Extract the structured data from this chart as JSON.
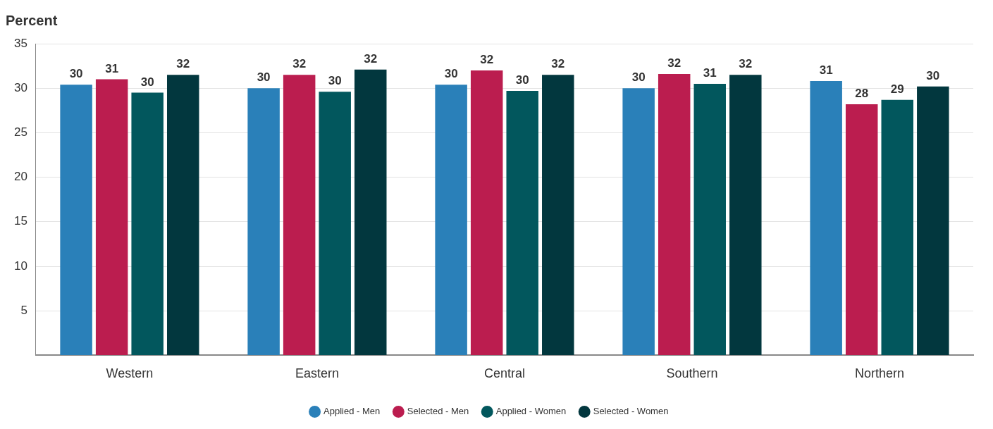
{
  "chart_data": {
    "type": "bar",
    "ylabel": "Percent",
    "categories": [
      "Western",
      "Eastern",
      "Central",
      "Southern",
      "Northern"
    ],
    "series": [
      {
        "name": "Applied - Men",
        "color": "#2a80b9",
        "values": [
          30.4,
          30.0,
          30.4,
          30.0,
          30.8
        ],
        "value_labels": [
          "30",
          "30",
          "30",
          "30",
          "31"
        ]
      },
      {
        "name": "Selected - Men",
        "color": "#bb1d4f",
        "values": [
          31.0,
          31.5,
          32.0,
          31.6,
          28.2
        ],
        "value_labels": [
          "31",
          "32",
          "32",
          "32",
          "28"
        ]
      },
      {
        "name": "Applied - Women",
        "color": "#02575d",
        "values": [
          29.5,
          29.6,
          29.7,
          30.5,
          28.7
        ],
        "value_labels": [
          "30",
          "30",
          "30",
          "31",
          "29"
        ]
      },
      {
        "name": "Selected - Women",
        "color": "#02373e",
        "values": [
          31.5,
          32.1,
          31.5,
          31.5,
          30.2
        ],
        "value_labels": [
          "32",
          "32",
          "32",
          "32",
          "30"
        ]
      }
    ],
    "ylim": [
      0,
      35
    ],
    "yticks": [
      {
        "value": 0,
        "label": null
      },
      5,
      10,
      15,
      20,
      25,
      30,
      35
    ],
    "grid": "y",
    "legend": "bottom"
  }
}
